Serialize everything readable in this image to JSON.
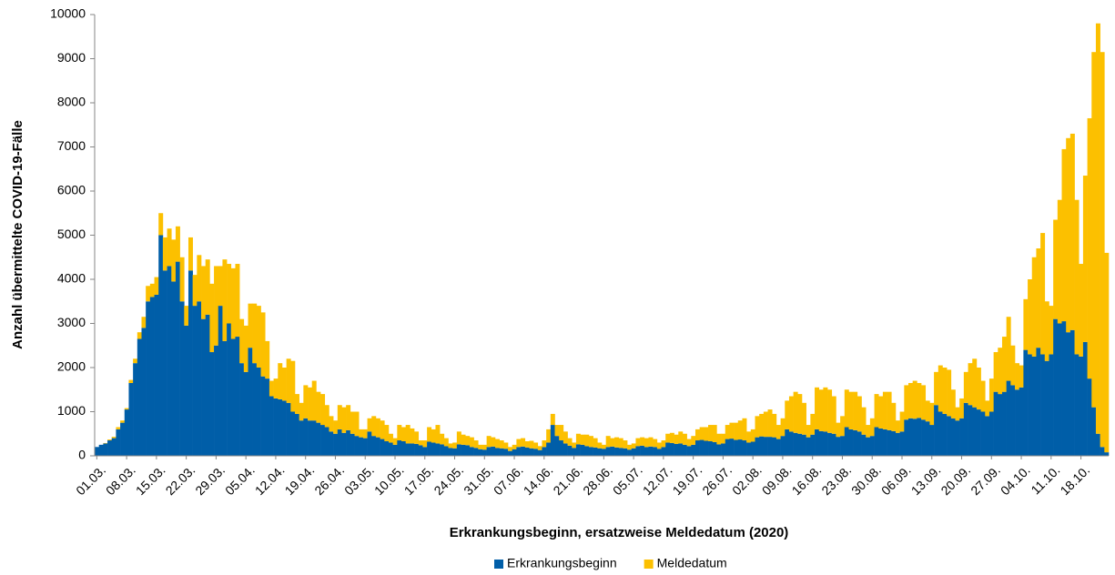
{
  "chart_data": {
    "type": "stacked-bar",
    "x_label": "Erkrankungsbeginn, ersatzweise Meldedatum (2020)",
    "y_label": "Anzahl übermittelte COVID-19-Fälle",
    "ylim": [
      0,
      10000
    ],
    "yticks": [
      0,
      1000,
      2000,
      3000,
      4000,
      5000,
      6000,
      7000,
      8000,
      9000,
      10000
    ],
    "legend_position": "bottom",
    "categories": [
      "01.03.",
      null,
      null,
      null,
      null,
      null,
      null,
      "08.03.",
      null,
      null,
      null,
      null,
      null,
      null,
      "15.03.",
      null,
      null,
      null,
      null,
      null,
      null,
      "22.03.",
      null,
      null,
      null,
      null,
      null,
      null,
      "29.03.",
      null,
      null,
      null,
      null,
      null,
      null,
      "05.04.",
      null,
      null,
      null,
      null,
      null,
      null,
      "12.04.",
      null,
      null,
      null,
      null,
      null,
      null,
      "19.04.",
      null,
      null,
      null,
      null,
      null,
      null,
      "26.04.",
      null,
      null,
      null,
      null,
      null,
      null,
      "03.05.",
      null,
      null,
      null,
      null,
      null,
      null,
      "10.05.",
      null,
      null,
      null,
      null,
      null,
      null,
      "17.05.",
      null,
      null,
      null,
      null,
      null,
      null,
      "24.05.",
      null,
      null,
      null,
      null,
      null,
      null,
      "31.05.",
      null,
      null,
      null,
      null,
      null,
      null,
      "07.06.",
      null,
      null,
      null,
      null,
      null,
      null,
      "14.06.",
      null,
      null,
      null,
      null,
      null,
      null,
      "21.06.",
      null,
      null,
      null,
      null,
      null,
      null,
      "28.06.",
      null,
      null,
      null,
      null,
      null,
      null,
      "05.07.",
      null,
      null,
      null,
      null,
      null,
      null,
      "12.07.",
      null,
      null,
      null,
      null,
      null,
      null,
      "19.07.",
      null,
      null,
      null,
      null,
      null,
      null,
      "26.07.",
      null,
      null,
      null,
      null,
      null,
      null,
      "02.08.",
      null,
      null,
      null,
      null,
      null,
      null,
      "09.08.",
      null,
      null,
      null,
      null,
      null,
      null,
      "16.08.",
      null,
      null,
      null,
      null,
      null,
      null,
      "23.08.",
      null,
      null,
      null,
      null,
      null,
      null,
      "30.08.",
      null,
      null,
      null,
      null,
      null,
      null,
      "06.09.",
      null,
      null,
      null,
      null,
      null,
      null,
      "13.09.",
      null,
      null,
      null,
      null,
      null,
      null,
      "20.09.",
      null,
      null,
      null,
      null,
      null,
      null,
      "27.09.",
      null,
      null,
      null,
      null,
      null,
      null,
      "04.10.",
      null,
      null,
      null,
      null,
      null,
      null,
      "11.10.",
      null,
      null,
      null,
      null,
      null,
      null,
      "18.10.",
      null,
      null,
      null,
      null,
      null,
      null
    ],
    "series": [
      {
        "name": "Erkrankungsbeginn",
        "color": "#005ea8",
        "values": [
          200,
          250,
          280,
          350,
          400,
          600,
          750,
          1050,
          1650,
          2100,
          2650,
          2900,
          3500,
          3600,
          3650,
          5000,
          4200,
          4300,
          3950,
          4400,
          3500,
          2950,
          4200,
          3400,
          3500,
          3100,
          3200,
          2350,
          2500,
          3400,
          2600,
          3000,
          2650,
          2700,
          2100,
          1900,
          2450,
          2100,
          2000,
          1800,
          1750,
          1350,
          1300,
          1280,
          1250,
          1200,
          1000,
          950,
          800,
          850,
          800,
          800,
          750,
          700,
          650,
          550,
          500,
          600,
          520,
          580,
          500,
          450,
          420,
          400,
          550,
          450,
          420,
          380,
          330,
          300,
          250,
          350,
          330,
          280,
          280,
          270,
          240,
          200,
          320,
          300,
          280,
          260,
          220,
          180,
          170,
          260,
          250,
          240,
          200,
          180,
          150,
          140,
          200,
          210,
          180,
          170,
          160,
          110,
          150,
          200,
          210,
          190,
          170,
          160,
          130,
          200,
          300,
          700,
          450,
          350,
          280,
          230,
          180,
          260,
          250,
          220,
          200,
          190,
          170,
          160,
          200,
          210,
          190,
          180,
          170,
          140,
          170,
          220,
          230,
          200,
          210,
          200,
          160,
          200,
          300,
          290,
          270,
          280,
          250,
          220,
          250,
          350,
          360,
          340,
          330,
          310,
          260,
          280,
          380,
          390,
          360,
          370,
          350,
          300,
          320,
          420,
          440,
          430,
          430,
          420,
          380,
          450,
          600,
          550,
          520,
          500,
          480,
          420,
          480,
          600,
          560,
          550,
          520,
          500,
          430,
          450,
          650,
          600,
          580,
          550,
          480,
          420,
          450,
          650,
          620,
          600,
          580,
          560,
          520,
          550,
          820,
          850,
          840,
          860,
          820,
          780,
          700,
          1150,
          1000,
          950,
          900,
          850,
          800,
          850,
          1200,
          1150,
          1100,
          1050,
          1000,
          900,
          1000,
          1450,
          1400,
          1450,
          1700,
          1600,
          1500,
          1550,
          2400,
          2300,
          2250,
          2450,
          2300,
          2150,
          2300,
          3100,
          3000,
          3050,
          2800,
          2850,
          2300,
          2250,
          2580,
          1750,
          1100,
          500,
          200,
          80
        ]
      },
      {
        "name": "Meldedatum",
        "color": "#fcc000",
        "values": [
          0,
          0,
          10,
          20,
          30,
          50,
          50,
          30,
          70,
          100,
          150,
          250,
          350,
          300,
          400,
          500,
          750,
          850,
          950,
          800,
          1000,
          450,
          750,
          700,
          1050,
          1200,
          1250,
          1550,
          1800,
          900,
          1850,
          1350,
          1600,
          1650,
          1000,
          1050,
          1000,
          1350,
          1400,
          1450,
          850,
          350,
          450,
          820,
          750,
          1000,
          1150,
          450,
          400,
          750,
          750,
          900,
          700,
          700,
          500,
          350,
          300,
          550,
          580,
          570,
          500,
          550,
          180,
          200,
          300,
          450,
          430,
          420,
          370,
          200,
          150,
          350,
          320,
          420,
          340,
          280,
          110,
          150,
          330,
          300,
          420,
          240,
          180,
          100,
          130,
          290,
          230,
          210,
          220,
          170,
          100,
          110,
          250,
          210,
          200,
          180,
          140,
          90,
          100,
          180,
          190,
          140,
          170,
          140,
          90,
          150,
          300,
          250,
          250,
          350,
          270,
          170,
          120,
          240,
          230,
          260,
          250,
          210,
          130,
          90,
          250,
          190,
          230,
          220,
          180,
          110,
          110,
          180,
          190,
          200,
          210,
          180,
          140,
          150,
          200,
          230,
          210,
          270,
          250,
          160,
          200,
          250,
          290,
          310,
          370,
          390,
          240,
          220,
          320,
          360,
          390,
          430,
          500,
          250,
          280,
          480,
          510,
          570,
          620,
          530,
          320,
          400,
          650,
          800,
          930,
          900,
          720,
          280,
          470,
          950,
          940,
          1000,
          980,
          850,
          320,
          450,
          850,
          850,
          870,
          800,
          620,
          280,
          400,
          750,
          730,
          850,
          870,
          640,
          280,
          450,
          780,
          800,
          860,
          790,
          780,
          470,
          500,
          750,
          1050,
          1050,
          1050,
          650,
          300,
          450,
          700,
          950,
          1100,
          950,
          700,
          350,
          750,
          900,
          1050,
          1250,
          1450,
          900,
          600,
          500,
          1150,
          1700,
          2250,
          2250,
          2750,
          1350,
          1100,
          2250,
          2800,
          3900,
          4400,
          4450,
          3500,
          2100,
          3770,
          5900,
          8050,
          9300,
          8950,
          4520
        ]
      }
    ]
  }
}
